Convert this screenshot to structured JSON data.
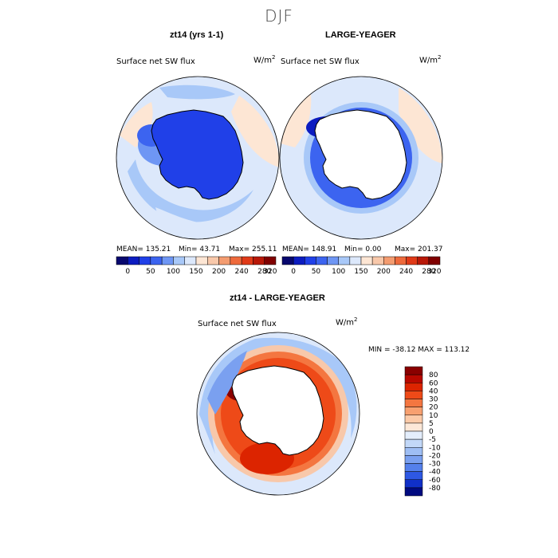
{
  "figure": {
    "title": "DJF"
  },
  "panels": [
    {
      "title": "zt14 (yrs 1-1)",
      "variable": "Surface net SW flux",
      "units": "W/m",
      "units_exp": "2",
      "stats": {
        "mean": "MEAN= 135.21",
        "min": "Min=   43.71",
        "max": "Max= 255.11"
      }
    },
    {
      "title": "LARGE-YEAGER",
      "variable": "Surface net SW flux",
      "units": "W/m",
      "units_exp": "2",
      "stats": {
        "mean": "MEAN= 148.91",
        "min": "Min=    0.00",
        "max": "Max= 201.37"
      }
    },
    {
      "title": "zt14 - LARGE-YEAGER",
      "variable": "Surface net SW flux",
      "units": "W/m",
      "units_exp": "2",
      "stats": {
        "minmax": "MIN = -38.12  MAX = 113.12"
      }
    }
  ],
  "chart_data": [
    {
      "type": "heatmap",
      "projection": "south-polar-stereographic",
      "title": "zt14 (yrs 1-1)",
      "subtitle": "Surface net SW flux",
      "units": "W/m^2",
      "stats": {
        "mean": 135.21,
        "min": 43.71,
        "max": 255.11
      },
      "colorbar": {
        "orientation": "horizontal",
        "ticks": [
          0,
          50,
          100,
          150,
          200,
          240,
          280,
          320
        ],
        "colors": [
          "#08086e",
          "#0c1cc0",
          "#2040e8",
          "#3c64f0",
          "#6e96f4",
          "#a8c8f8",
          "#dce8fb",
          "#fde6d4",
          "#f8c8aa",
          "#f49c70",
          "#ee6a3c",
          "#e03a18",
          "#b81808",
          "#800000"
        ]
      }
    },
    {
      "type": "heatmap",
      "projection": "south-polar-stereographic",
      "title": "LARGE-YEAGER",
      "subtitle": "Surface net SW flux",
      "units": "W/m^2",
      "stats": {
        "mean": 148.91,
        "min": 0.0,
        "max": 201.37
      },
      "colorbar": {
        "orientation": "horizontal",
        "ticks": [
          0,
          50,
          100,
          150,
          200,
          240,
          280,
          320
        ],
        "colors": [
          "#08086e",
          "#0c1cc0",
          "#2040e8",
          "#3c64f0",
          "#6e96f4",
          "#a8c8f8",
          "#dce8fb",
          "#fde6d4",
          "#f8c8aa",
          "#f49c70",
          "#ee6a3c",
          "#e03a18",
          "#b81808",
          "#800000"
        ]
      }
    },
    {
      "type": "heatmap",
      "projection": "south-polar-stereographic",
      "title": "zt14 - LARGE-YEAGER",
      "subtitle": "Surface net SW flux",
      "units": "W/m^2",
      "stats": {
        "min": -38.12,
        "max": 113.12
      },
      "colorbar": {
        "orientation": "vertical",
        "ticks": [
          80,
          60,
          40,
          30,
          20,
          10,
          5,
          0,
          -5,
          -10,
          -20,
          -30,
          -40,
          -60,
          -80
        ],
        "colors": [
          "#8a0000",
          "#b80800",
          "#dc2400",
          "#ee4a18",
          "#f47640",
          "#f8a070",
          "#fccaa8",
          "#fde8d8",
          "#e4eefc",
          "#c2d8f8",
          "#9ebef4",
          "#7aa0f0",
          "#5480ec",
          "#2e58e4",
          "#1030c8",
          "#000a80"
        ]
      }
    }
  ]
}
